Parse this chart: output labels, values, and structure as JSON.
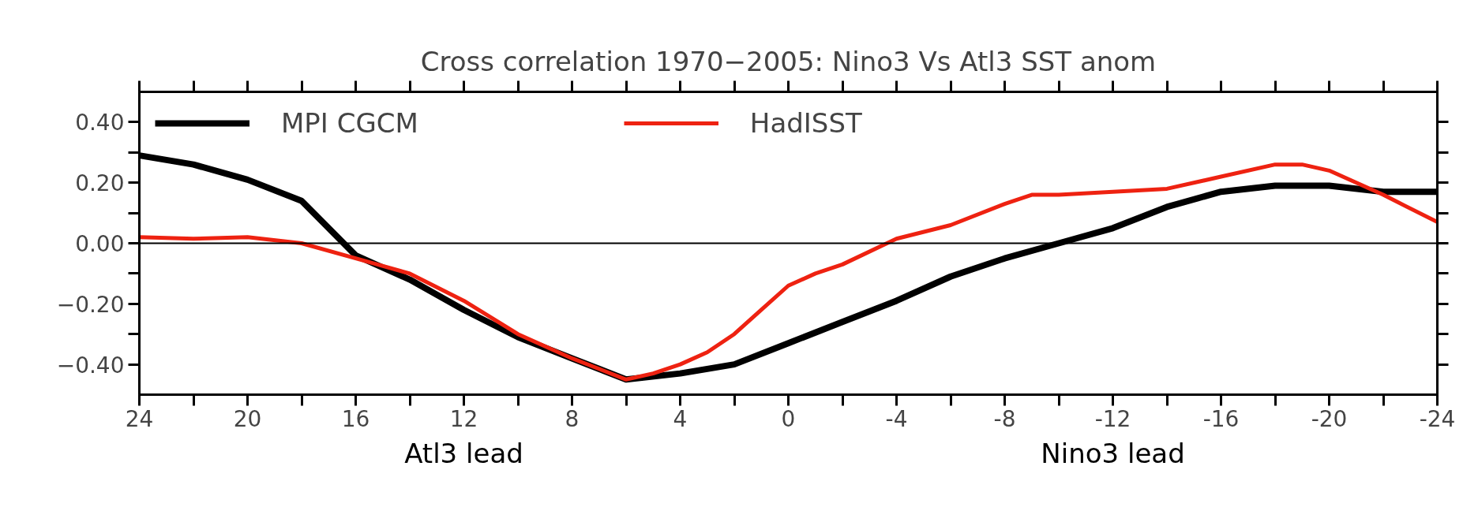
{
  "chart_data": {
    "type": "line",
    "title": "Cross correlation 1970−2005: Nino3 Vs Atl3 SST anom",
    "annotations": [
      "Atl3 lead",
      "Nino3 lead"
    ],
    "xlim": [
      24,
      -24
    ],
    "xticks": [
      24,
      {
        "value": 22,
        "label": null
      },
      20,
      {
        "value": 18,
        "label": null
      },
      16,
      {
        "value": 14,
        "label": null
      },
      12,
      {
        "value": 10,
        "label": null
      },
      8,
      {
        "value": 6,
        "label": null
      },
      4,
      {
        "value": 2,
        "label": null
      },
      0,
      {
        "value": -2,
        "label": null
      },
      -4,
      {
        "value": -6,
        "label": null
      },
      -8,
      {
        "value": -10,
        "label": null
      },
      -12,
      {
        "value": -14,
        "label": null
      },
      -16,
      {
        "value": -18,
        "label": null
      },
      -20,
      {
        "value": -22,
        "label": null
      },
      -24
    ],
    "ylim": [
      -0.5,
      0.5
    ],
    "yticks": [
      {
        "value": -0.4,
        "label": "−0.40"
      },
      {
        "value": -0.3,
        "label": null
      },
      {
        "value": -0.2,
        "label": "−0.20"
      },
      {
        "value": -0.1,
        "label": null
      },
      {
        "value": 0,
        "label": "0.00"
      },
      {
        "value": 0.1,
        "label": null
      },
      {
        "value": 0.2,
        "label": "0.20"
      },
      {
        "value": 0.3,
        "label": null
      },
      {
        "value": 0.4,
        "label": "0.40"
      }
    ],
    "ref_lines": [
      {
        "axis": "y",
        "value": 0,
        "color": "#000000"
      }
    ],
    "grid": false,
    "legend": "top left",
    "marker": "none",
    "line_style": "solid",
    "series": [
      {
        "name": "MPI CGCM",
        "color": "#000000",
        "x": [
          24,
          22,
          20,
          18,
          16,
          14,
          12,
          10,
          8,
          6,
          4,
          2,
          0,
          -2,
          -4,
          -6,
          -8,
          -10,
          -12,
          -14,
          -16,
          -18,
          -20,
          -22,
          -24
        ],
        "values": [
          0.29,
          0.26,
          0.21,
          0.14,
          -0.04,
          -0.12,
          -0.22,
          -0.31,
          -0.38,
          -0.45,
          -0.43,
          -0.4,
          -0.33,
          -0.26,
          -0.19,
          -0.11,
          -0.05,
          0.0,
          0.05,
          0.12,
          0.17,
          0.19,
          0.19,
          0.17,
          0.17
        ]
      },
      {
        "name": "HadISST",
        "color": "#ee2211",
        "x": [
          24,
          22,
          20,
          18,
          16,
          14,
          12,
          10,
          8,
          6,
          5,
          4,
          3,
          2,
          1,
          0,
          -1,
          -2,
          -4,
          -6,
          -8,
          -9,
          -10,
          -12,
          -14,
          -16,
          -18,
          -19,
          -20,
          -22,
          -24
        ],
        "values": [
          0.02,
          0.015,
          0.02,
          0.0,
          -0.05,
          -0.1,
          -0.19,
          -0.3,
          -0.38,
          -0.45,
          -0.43,
          -0.4,
          -0.36,
          -0.3,
          -0.22,
          -0.14,
          -0.1,
          -0.07,
          0.015,
          0.06,
          0.13,
          0.16,
          0.16,
          0.17,
          0.18,
          0.22,
          0.26,
          0.26,
          0.24,
          0.16,
          0.07
        ]
      }
    ]
  }
}
